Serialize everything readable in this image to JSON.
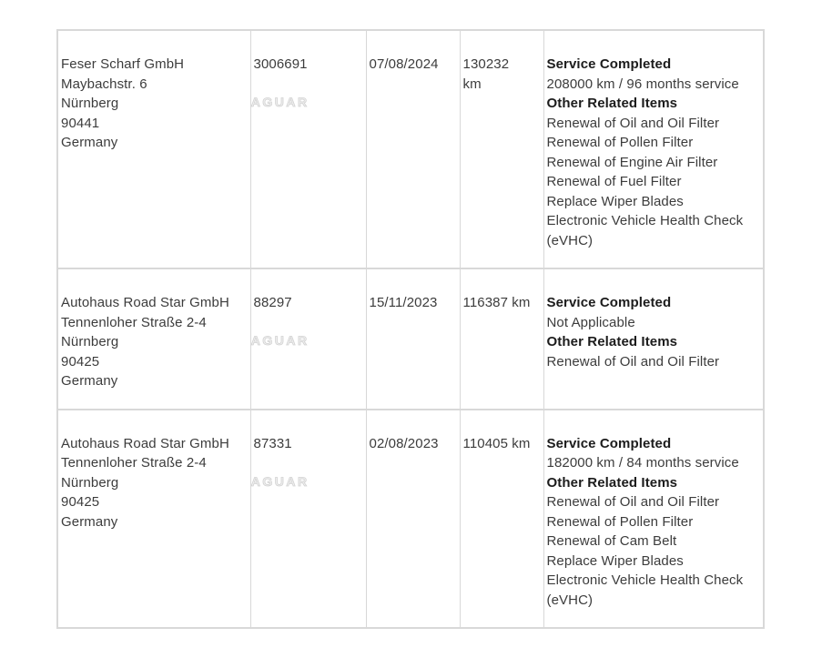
{
  "watermark_text": "JAGUAR",
  "colors": {
    "border": "#d8d8d8",
    "text": "#3c3c3c",
    "text_bold": "#1c1c1c",
    "watermark": "#e8e8e8"
  },
  "service_history": {
    "rows": [
      {
        "dealer_lines": [
          "Feser Scharf GmbH",
          "Maybachstr. 6",
          "Nürnberg",
          "90441",
          "Germany"
        ],
        "job_number": "3006691",
        "date": "07/08/2024",
        "odometer_lines": [
          "130232",
          "km"
        ],
        "details": [
          {
            "text": "Service Completed",
            "bold": true
          },
          {
            "text": "208000 km / 96 months service",
            "bold": false
          },
          {
            "text": "Other Related Items",
            "bold": true
          },
          {
            "text": "Renewal of Oil and Oil Filter",
            "bold": false
          },
          {
            "text": "Renewal of Pollen Filter",
            "bold": false
          },
          {
            "text": "Renewal of Engine Air Filter",
            "bold": false
          },
          {
            "text": "Renewal of Fuel Filter",
            "bold": false
          },
          {
            "text": "Replace Wiper Blades",
            "bold": false
          },
          {
            "text": "Electronic Vehicle Health Check (eVHC)",
            "bold": false
          }
        ]
      },
      {
        "dealer_lines": [
          "Autohaus Road Star GmbH",
          "Tennenloher Straße 2-4",
          "Nürnberg",
          "90425",
          "Germany"
        ],
        "job_number": "88297",
        "date": "15/11/2023",
        "odometer_lines": [
          "116387 km"
        ],
        "details": [
          {
            "text": "Service Completed",
            "bold": true
          },
          {
            "text": "Not Applicable",
            "bold": false
          },
          {
            "text": "Other Related Items",
            "bold": true
          },
          {
            "text": "Renewal of Oil and Oil Filter",
            "bold": false
          }
        ]
      },
      {
        "dealer_lines": [
          "Autohaus Road Star GmbH",
          "Tennenloher Straße 2-4",
          "Nürnberg",
          "90425",
          "Germany"
        ],
        "job_number": "87331",
        "date": "02/08/2023",
        "odometer_lines": [
          "110405 km"
        ],
        "details": [
          {
            "text": "Service Completed",
            "bold": true
          },
          {
            "text": "182000 km / 84 months service",
            "bold": false
          },
          {
            "text": "Other Related Items",
            "bold": true
          },
          {
            "text": "Renewal of Oil and Oil Filter",
            "bold": false
          },
          {
            "text": "Renewal of Pollen Filter",
            "bold": false
          },
          {
            "text": "Renewal of Cam Belt",
            "bold": false
          },
          {
            "text": "Replace Wiper Blades",
            "bold": false
          },
          {
            "text": "Electronic Vehicle Health Check (eVHC)",
            "bold": false
          }
        ]
      }
    ]
  }
}
